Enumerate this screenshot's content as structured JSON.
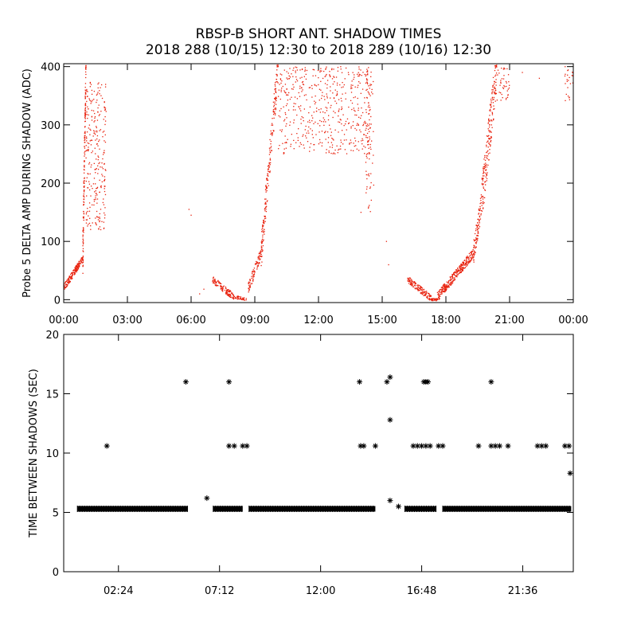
{
  "title_line1": "RBSP-B SHORT ANT. SHADOW TIMES",
  "title_line2": "2018 288 (10/15) 12:30 to 2018 289 (10/16) 12:30",
  "colors": {
    "red": "#e8200c",
    "black": "#000000"
  },
  "chart_data": [
    {
      "type": "scatter",
      "name": "top",
      "ylabel": "Probe 5 DELTA AMP DURING SHADOW (ADC)",
      "xlabel": "",
      "x_unit": "hours",
      "xlim": [
        0,
        24
      ],
      "ylim": [
        -5,
        405
      ],
      "x_tick_values": [
        0,
        3,
        6,
        9,
        12,
        15,
        18,
        21,
        24
      ],
      "x_tick_labels": [
        "00:00",
        "03:00",
        "06:00",
        "09:00",
        "12:00",
        "15:00",
        "18:00",
        "21:00",
        "00:00"
      ],
      "y_tick_values": [
        0,
        100,
        200,
        300,
        400
      ],
      "y_tick_labels": [
        "0",
        "100",
        "200",
        "300",
        "400"
      ],
      "color": "#e8200c",
      "marker": "dot",
      "clusters": [
        {
          "x": [
            0.0,
            0.9
          ],
          "y": [
            20,
            70
          ],
          "n": 180,
          "spread": 6,
          "kind": "rise"
        },
        {
          "x": [
            0.9,
            1.05
          ],
          "y": [
            70,
            400
          ],
          "n": 160,
          "spread": 40,
          "kind": "rise"
        },
        {
          "x": [
            1.05,
            2.0
          ],
          "y": [
            120,
            380
          ],
          "n": 260,
          "spread": 70,
          "kind": "band"
        },
        {
          "x": [
            7.0,
            8.0
          ],
          "y": [
            35,
            5
          ],
          "n": 120,
          "spread": 6,
          "kind": "rise"
        },
        {
          "x": [
            8.0,
            8.6
          ],
          "y": [
            5,
            0
          ],
          "n": 40,
          "spread": 3,
          "kind": "rise"
        },
        {
          "x": [
            8.7,
            9.3
          ],
          "y": [
            20,
            80
          ],
          "n": 90,
          "spread": 10,
          "kind": "rise"
        },
        {
          "x": [
            9.3,
            10.1
          ],
          "y": [
            80,
            400
          ],
          "n": 200,
          "spread": 30,
          "kind": "rise"
        },
        {
          "x": [
            10.1,
            14.5
          ],
          "y": [
            250,
            400
          ],
          "n": 520,
          "spread": 50,
          "kind": "band"
        },
        {
          "x": [
            14.2,
            14.6
          ],
          "y": [
            150,
            400
          ],
          "n": 60,
          "spread": 60,
          "kind": "band"
        },
        {
          "x": [
            16.2,
            17.3
          ],
          "y": [
            35,
            2
          ],
          "n": 140,
          "spread": 6,
          "kind": "rise"
        },
        {
          "x": [
            17.3,
            17.6
          ],
          "y": [
            0,
            0
          ],
          "n": 30,
          "spread": 2,
          "kind": "rise"
        },
        {
          "x": [
            17.6,
            19.3
          ],
          "y": [
            5,
            80
          ],
          "n": 300,
          "spread": 8,
          "kind": "rise"
        },
        {
          "x": [
            19.3,
            19.7
          ],
          "y": [
            80,
            170
          ],
          "n": 90,
          "spread": 20,
          "kind": "rise"
        },
        {
          "x": [
            19.7,
            20.4
          ],
          "y": [
            170,
            400
          ],
          "n": 200,
          "spread": 40,
          "kind": "rise"
        },
        {
          "x": [
            20.4,
            21.0
          ],
          "y": [
            340,
            400
          ],
          "n": 40,
          "spread": 30,
          "kind": "band"
        },
        {
          "x": [
            23.6,
            24.0
          ],
          "y": [
            340,
            400
          ],
          "n": 25,
          "spread": 30,
          "kind": "band"
        }
      ],
      "scattered_points": [
        {
          "x": 5.9,
          "y": 155
        },
        {
          "x": 6.0,
          "y": 145
        },
        {
          "x": 6.4,
          "y": 10
        },
        {
          "x": 6.6,
          "y": 18
        },
        {
          "x": 14.0,
          "y": 150
        },
        {
          "x": 15.2,
          "y": 100
        },
        {
          "x": 15.3,
          "y": 60
        },
        {
          "x": 21.6,
          "y": 390
        },
        {
          "x": 22.4,
          "y": 380
        }
      ]
    },
    {
      "type": "scatter",
      "name": "bottom",
      "ylabel": "TIME BETWEEN SHADOWS (SEC)",
      "xlabel": "",
      "x_unit": "hours",
      "xlim": [
        -0.2,
        24
      ],
      "ylim": [
        0,
        20
      ],
      "x_tick_values": [
        2.4,
        7.2,
        12.0,
        16.8,
        21.6
      ],
      "x_tick_labels": [
        "02:24",
        "07:12",
        "12:00",
        "16:48",
        "21:36"
      ],
      "y_tick_values": [
        0,
        5,
        10,
        15,
        20
      ],
      "y_tick_labels": [
        "0",
        "5",
        "10",
        "15",
        "20"
      ],
      "color": "#000000",
      "marker": "asterisk",
      "baseline_segments": [
        {
          "x": [
            0.45,
            5.7
          ],
          "y": 5.3
        },
        {
          "x": 6.9,
          "y": 5.3,
          "x2": 8.3
        },
        {
          "x": [
            8.6,
            14.6
          ],
          "y": 5.3
        },
        {
          "x": [
            16.0,
            17.5
          ],
          "y": 5.3
        },
        {
          "x": [
            17.8,
            23.9
          ],
          "y": 5.3
        }
      ],
      "points": [
        {
          "x": 1.85,
          "y": 10.6
        },
        {
          "x": 5.6,
          "y": 16.0
        },
        {
          "x": 6.6,
          "y": 6.2
        },
        {
          "x": 7.65,
          "y": 16.0
        },
        {
          "x": 7.65,
          "y": 10.6
        },
        {
          "x": 7.9,
          "y": 10.6
        },
        {
          "x": 8.3,
          "y": 10.6
        },
        {
          "x": 8.5,
          "y": 10.6
        },
        {
          "x": 13.85,
          "y": 16.0
        },
        {
          "x": 13.9,
          "y": 10.6
        },
        {
          "x": 14.05,
          "y": 10.6
        },
        {
          "x": 14.6,
          "y": 10.6
        },
        {
          "x": 15.15,
          "y": 16.0
        },
        {
          "x": 15.3,
          "y": 16.4
        },
        {
          "x": 15.3,
          "y": 12.8
        },
        {
          "x": 15.3,
          "y": 6.0
        },
        {
          "x": 15.7,
          "y": 5.5
        },
        {
          "x": 16.4,
          "y": 10.6
        },
        {
          "x": 16.6,
          "y": 10.6
        },
        {
          "x": 16.8,
          "y": 10.6
        },
        {
          "x": 16.9,
          "y": 16.0
        },
        {
          "x": 17.0,
          "y": 16.0
        },
        {
          "x": 17.1,
          "y": 16.0
        },
        {
          "x": 17.0,
          "y": 10.6
        },
        {
          "x": 17.2,
          "y": 10.6
        },
        {
          "x": 17.6,
          "y": 10.6
        },
        {
          "x": 17.8,
          "y": 10.6
        },
        {
          "x": 19.5,
          "y": 10.6
        },
        {
          "x": 20.1,
          "y": 16.0
        },
        {
          "x": 20.1,
          "y": 10.6
        },
        {
          "x": 20.3,
          "y": 10.6
        },
        {
          "x": 20.5,
          "y": 10.6
        },
        {
          "x": 20.9,
          "y": 10.6
        },
        {
          "x": 22.3,
          "y": 10.6
        },
        {
          "x": 22.5,
          "y": 10.6
        },
        {
          "x": 22.7,
          "y": 10.6
        },
        {
          "x": 23.6,
          "y": 10.6
        },
        {
          "x": 23.8,
          "y": 10.6
        },
        {
          "x": 23.85,
          "y": 8.3
        }
      ]
    }
  ]
}
